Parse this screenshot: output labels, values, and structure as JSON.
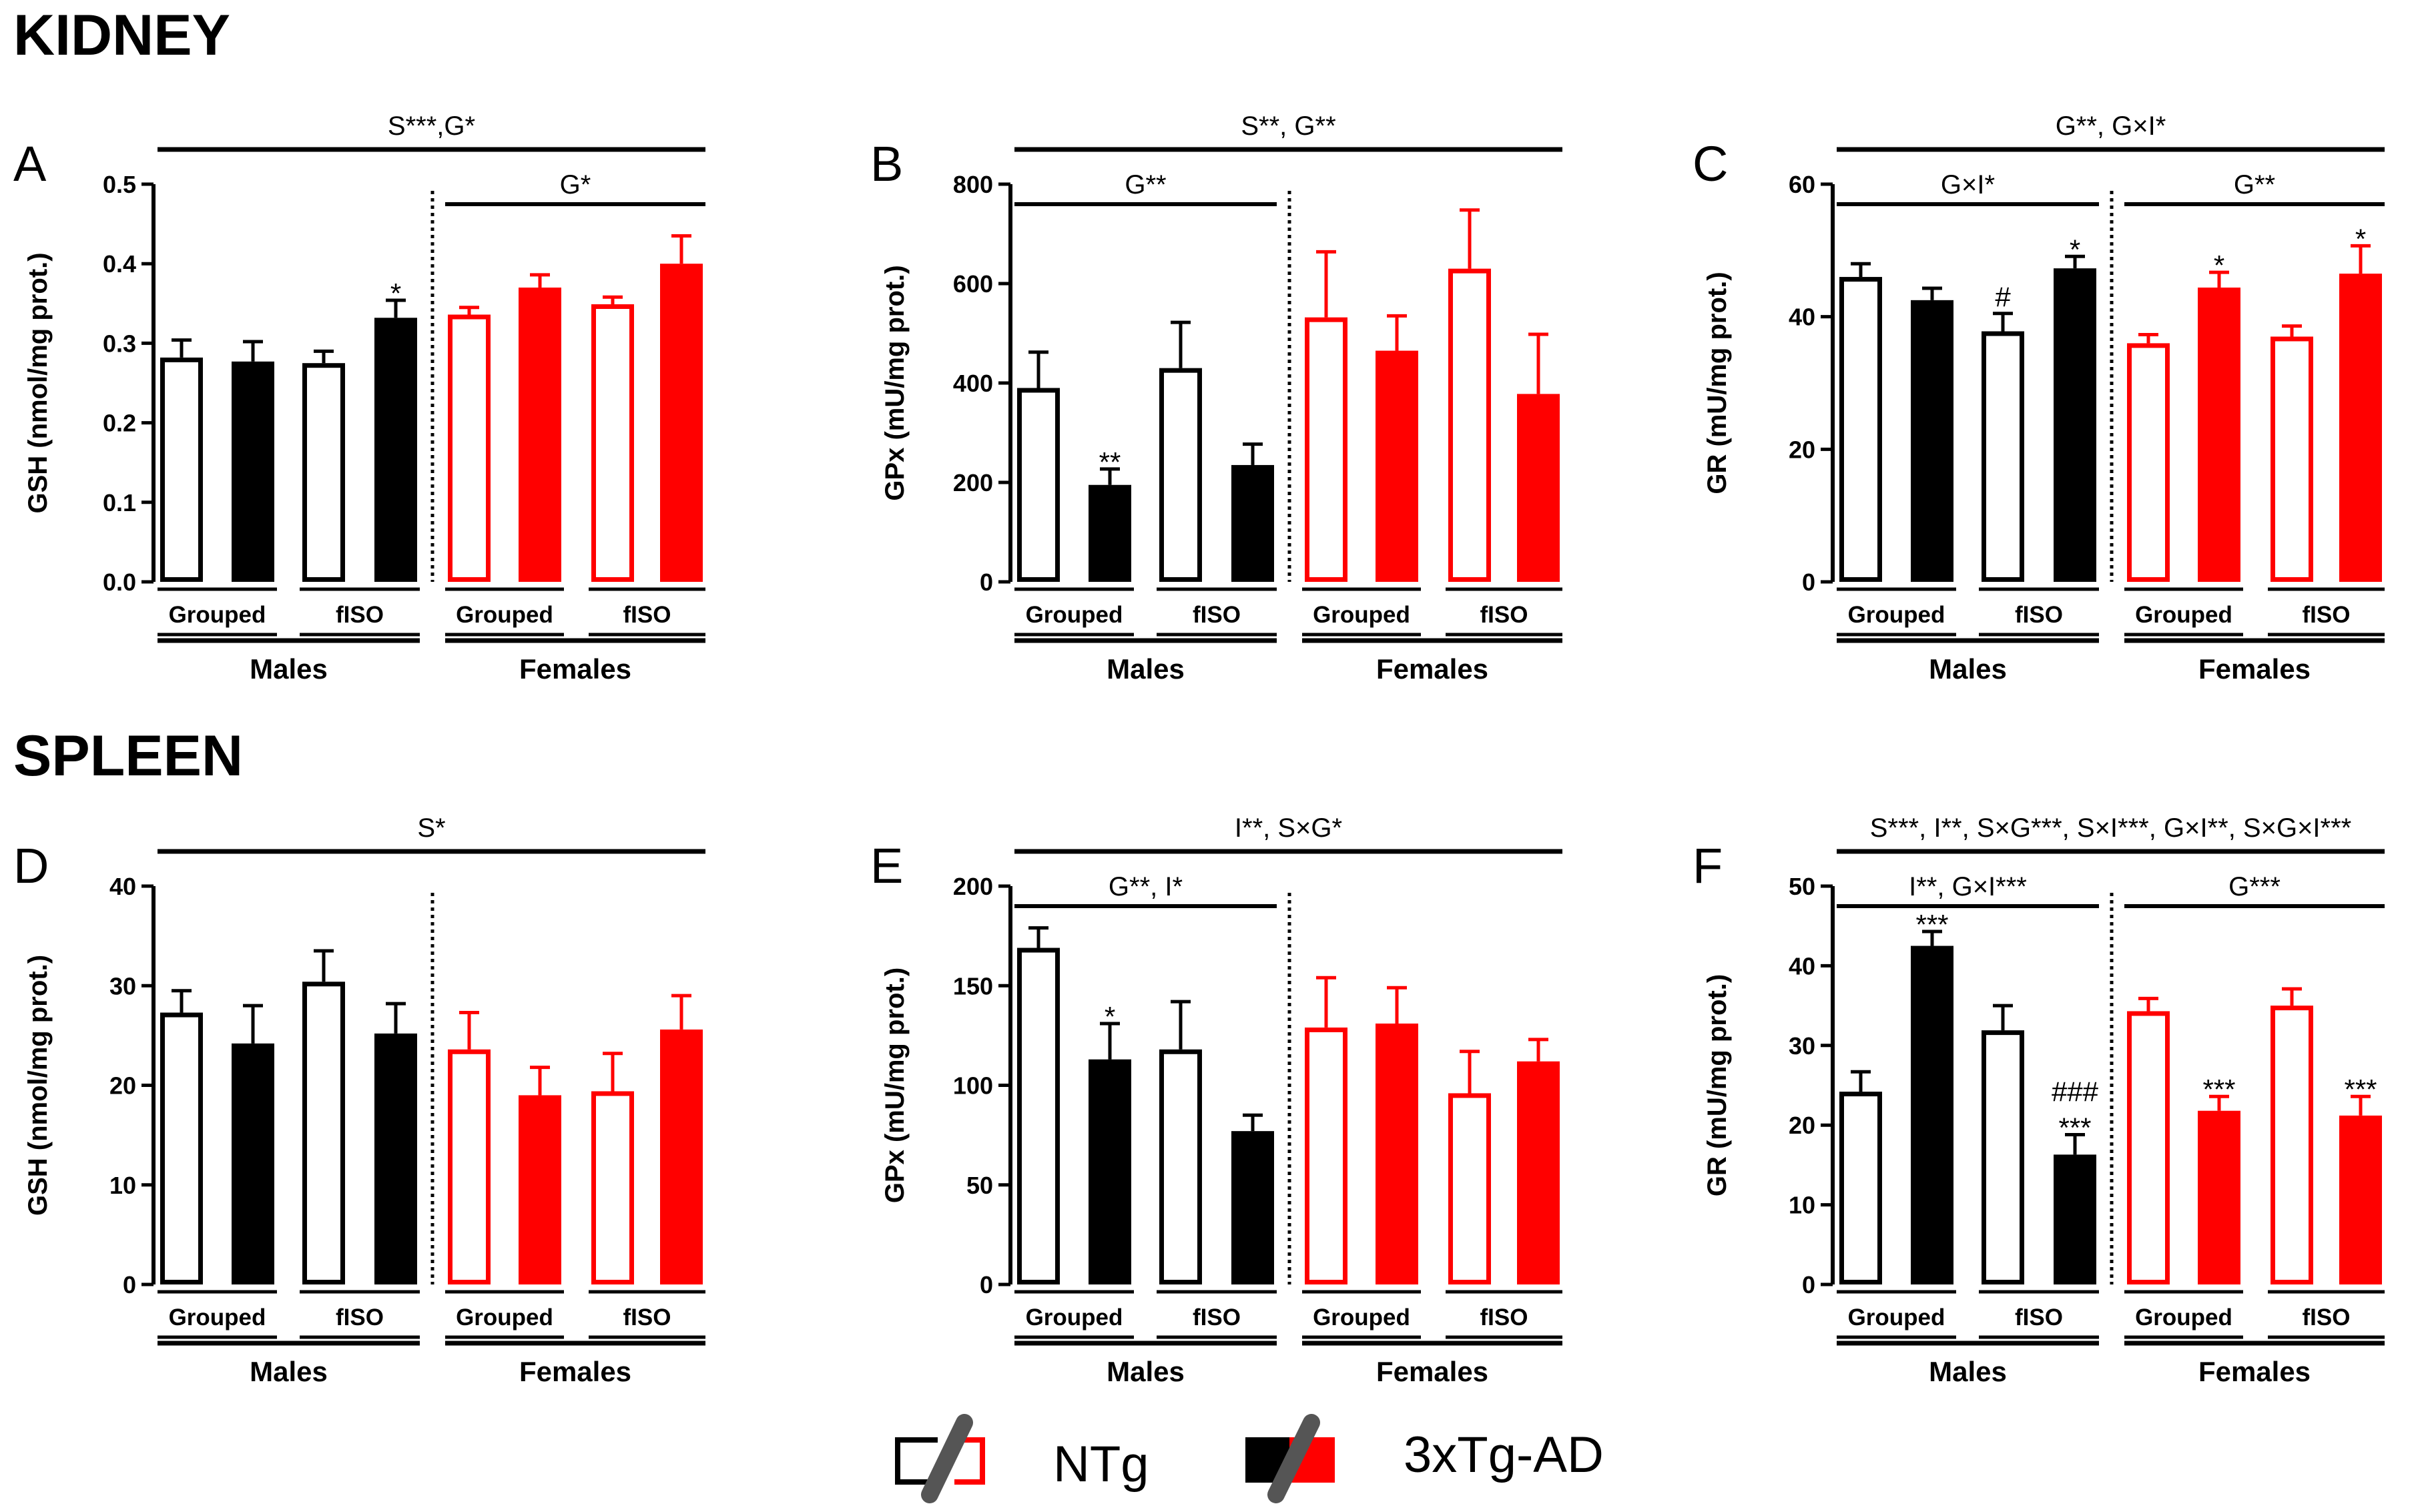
{
  "sections": {
    "kidney": "KIDNEY",
    "spleen": "SPLEEN"
  },
  "colors": {
    "ntg_male": "#000000",
    "ntg_female": "#ff0000",
    "tg_male": "#000000",
    "tg_female": "#ff0000",
    "background": "#ffffff"
  },
  "legend": {
    "ntg_label": "NTg",
    "tg_label": "3xTg-AD"
  },
  "chart_data": [
    {
      "panel": "A",
      "section": "KIDNEY",
      "type": "bar",
      "ylabel": "GSH (nmol/mg prot.)",
      "ylim": [
        0,
        0.5
      ],
      "yticks": [
        0,
        0.1,
        0.2,
        0.3,
        0.4,
        0.5
      ],
      "ytick_labels": [
        "0.0",
        "0.1",
        "0.2",
        "0.3",
        "0.4",
        "0.5"
      ],
      "categories": [
        "Males Grouped NTg",
        "Males Grouped 3xTg-AD",
        "Males fISO NTg",
        "Males fISO 3xTg-AD",
        "Females Grouped NTg",
        "Females Grouped 3xTg-AD",
        "Females fISO NTg",
        "Females fISO 3xTg-AD"
      ],
      "values": [
        0.282,
        0.277,
        0.275,
        0.332,
        0.336,
        0.37,
        0.349,
        0.4
      ],
      "errors": [
        0.022,
        0.025,
        0.015,
        0.022,
        0.009,
        0.016,
        0.009,
        0.035
      ],
      "bar_labels": [
        "",
        "",
        "",
        "*",
        "",
        "",
        "",
        ""
      ],
      "top_sig": "S***,G*",
      "male_sig": "",
      "female_sig": "G*",
      "group_labels": [
        "Grouped",
        "fISO",
        "Grouped",
        "fISO"
      ],
      "sex_labels": [
        "Males",
        "Females"
      ]
    },
    {
      "panel": "B",
      "section": "KIDNEY",
      "type": "bar",
      "ylabel": "GPx (mU/mg prot.)",
      "ylim": [
        0,
        800
      ],
      "yticks": [
        0,
        200,
        400,
        600,
        800
      ],
      "ytick_labels": [
        "0",
        "200",
        "400",
        "600",
        "800"
      ],
      "categories": [
        "Males Grouped NTg",
        "Males Grouped 3xTg-AD",
        "Males fISO NTg",
        "Males fISO 3xTg-AD",
        "Females Grouped NTg",
        "Females Grouped 3xTg-AD",
        "Females fISO NTg",
        "Females fISO 3xTg-AD"
      ],
      "values": [
        390,
        195,
        430,
        235,
        532,
        465,
        630,
        378
      ],
      "errors": [
        72,
        32,
        92,
        42,
        132,
        70,
        118,
        120
      ],
      "bar_labels": [
        "",
        "**",
        "",
        "",
        "",
        "",
        "",
        ""
      ],
      "top_sig": "S**, G**",
      "male_sig": "G**",
      "female_sig": "",
      "group_labels": [
        "Grouped",
        "fISO",
        "Grouped",
        "fISO"
      ],
      "sex_labels": [
        "Males",
        "Females"
      ]
    },
    {
      "panel": "C",
      "section": "KIDNEY",
      "type": "bar",
      "ylabel": "GR (mU/mg prot.)",
      "ylim": [
        0,
        60
      ],
      "yticks": [
        0,
        20,
        40,
        60
      ],
      "ytick_labels": [
        "0",
        "20",
        "40",
        "60"
      ],
      "categories": [
        "Males Grouped NTg",
        "Males Grouped 3xTg-AD",
        "Males fISO NTg",
        "Males fISO 3xTg-AD",
        "Females Grouped NTg",
        "Females Grouped 3xTg-AD",
        "Females fISO NTg",
        "Females fISO 3xTg-AD"
      ],
      "values": [
        46.0,
        42.5,
        37.8,
        47.3,
        36.0,
        44.4,
        37.0,
        46.5
      ],
      "errors": [
        2.0,
        1.8,
        2.7,
        1.8,
        1.3,
        2.3,
        1.6,
        4.2
      ],
      "bar_labels": [
        "",
        "",
        "#",
        "*",
        "",
        "*",
        "",
        "*"
      ],
      "top_sig": "G**, G×I*",
      "male_sig": "G×I*",
      "female_sig": "G**",
      "group_labels": [
        "Grouped",
        "fISO",
        "Grouped",
        "fISO"
      ],
      "sex_labels": [
        "Males",
        "Females"
      ]
    },
    {
      "panel": "D",
      "section": "SPLEEN",
      "type": "bar",
      "ylabel": "GSH (nmol/mg prot.)",
      "ylim": [
        0,
        40
      ],
      "yticks": [
        0,
        10,
        20,
        30,
        40
      ],
      "ytick_labels": [
        "0",
        "10",
        "20",
        "30",
        "40"
      ],
      "categories": [
        "Males Grouped NTg",
        "Males Grouped 3xTg-AD",
        "Males fISO NTg",
        "Males fISO 3xTg-AD",
        "Females Grouped NTg",
        "Females Grouped 3xTg-AD",
        "Females fISO NTg",
        "Females fISO 3xTg-AD"
      ],
      "values": [
        27.3,
        24.2,
        30.4,
        25.2,
        23.6,
        19.0,
        19.4,
        25.6
      ],
      "errors": [
        2.2,
        3.8,
        3.1,
        3.0,
        3.7,
        2.8,
        3.8,
        3.4
      ],
      "bar_labels": [
        "",
        "",
        "",
        "",
        "",
        "",
        "",
        ""
      ],
      "top_sig": "S*",
      "male_sig": "",
      "female_sig": "",
      "group_labels": [
        "Grouped",
        "fISO",
        "Grouped",
        "fISO"
      ],
      "sex_labels": [
        "Males",
        "Females"
      ]
    },
    {
      "panel": "E",
      "section": "SPLEEN",
      "type": "bar",
      "ylabel": "GPx (mU/mg prot.)",
      "ylim": [
        0,
        200
      ],
      "yticks": [
        0,
        50,
        100,
        150,
        200
      ],
      "ytick_labels": [
        "0",
        "50",
        "100",
        "150",
        "200"
      ],
      "categories": [
        "Males Grouped NTg",
        "Males Grouped 3xTg-AD",
        "Males fISO NTg",
        "Males fISO 3xTg-AD",
        "Females Grouped NTg",
        "Females Grouped 3xTg-AD",
        "Females fISO NTg",
        "Females fISO 3xTg-AD"
      ],
      "values": [
        169,
        113,
        118,
        77,
        129,
        131,
        96,
        112
      ],
      "errors": [
        10,
        18,
        24,
        8,
        25,
        18,
        21,
        11
      ],
      "bar_labels": [
        "",
        "*",
        "",
        "",
        "",
        "",
        "",
        ""
      ],
      "top_sig": "I**, S×G*",
      "male_sig": "G**, I*",
      "female_sig": "",
      "group_labels": [
        "Grouped",
        "fISO",
        "Grouped",
        "fISO"
      ],
      "sex_labels": [
        "Males",
        "Females"
      ]
    },
    {
      "panel": "F",
      "section": "SPLEEN",
      "type": "bar",
      "ylabel": "GR (mU/mg prot.)",
      "ylim": [
        0,
        50
      ],
      "yticks": [
        0,
        10,
        20,
        30,
        40,
        50
      ],
      "ytick_labels": [
        "0",
        "10",
        "20",
        "30",
        "40",
        "50"
      ],
      "categories": [
        "Males Grouped NTg",
        "Males Grouped 3xTg-AD",
        "Males fISO NTg",
        "Males fISO 3xTg-AD",
        "Females Grouped NTg",
        "Females Grouped 3xTg-AD",
        "Females fISO NTg",
        "Females fISO 3xTg-AD"
      ],
      "values": [
        24.2,
        42.5,
        31.9,
        16.3,
        34.3,
        21.8,
        35.0,
        21.2
      ],
      "errors": [
        2.5,
        1.8,
        3.1,
        2.5,
        1.6,
        1.8,
        2.1,
        2.4
      ],
      "bar_labels": [
        "",
        "***",
        "",
        "###\n***",
        "",
        "***",
        "",
        "***"
      ],
      "top_sig": "S***, I**, S×G***, S×I***, G×I**, S×G×I***",
      "male_sig": "I**, G×I***",
      "female_sig": "G***",
      "group_labels": [
        "Grouped",
        "fISO",
        "Grouped",
        "fISO"
      ],
      "sex_labels": [
        "Males",
        "Females"
      ]
    }
  ]
}
